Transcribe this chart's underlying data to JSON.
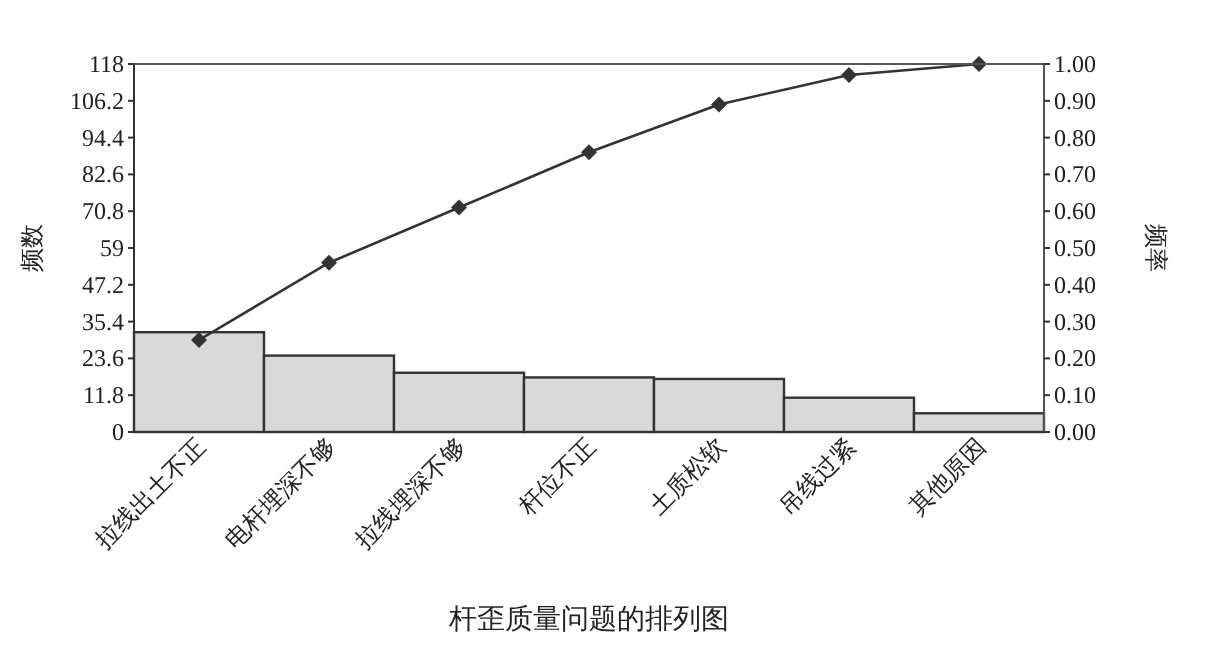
{
  "chart_data": {
    "type": "bar",
    "title": "杆歪质量问题的排列图",
    "ylabel": "频数",
    "y2label": "频率",
    "categories": [
      "拉线出土不正",
      "电杆埋深不够",
      "拉线埋深不够",
      "杆位不正",
      "土质松软",
      "吊线过紧",
      "其他原因"
    ],
    "series": [
      {
        "color": "#d9d9d9",
        "values": [
          32,
          24.5,
          19,
          17.5,
          17,
          11,
          6
        ]
      },
      {
        "type": "line",
        "axis": "y2",
        "color": "#333333",
        "marker": "diamond",
        "values": [
          0.25,
          0.46,
          0.61,
          0.76,
          0.89,
          0.97,
          1.0
        ]
      }
    ],
    "ylim": [
      0,
      118
    ],
    "yticks": [
      0,
      11.8,
      23.6,
      35.4,
      47.2,
      59,
      70.8,
      82.6,
      94.4,
      106.2,
      118
    ],
    "y2lim": [
      0,
      1
    ],
    "y2ticks": [
      {
        "value": 0,
        "label": "0.00"
      },
      {
        "value": 0.1,
        "label": "0.10"
      },
      {
        "value": 0.2,
        "label": "0.20"
      },
      {
        "value": 0.3,
        "label": "0.30"
      },
      {
        "value": 0.4,
        "label": "0.40"
      },
      {
        "value": 0.5,
        "label": "0.50"
      },
      {
        "value": 0.6,
        "label": "0.60"
      },
      {
        "value": 0.7,
        "label": "0.70"
      },
      {
        "value": 0.8,
        "label": "0.80"
      },
      {
        "value": 0.9,
        "label": "0.90"
      },
      {
        "value": 1,
        "label": "1.00"
      }
    ],
    "grid": false
  }
}
